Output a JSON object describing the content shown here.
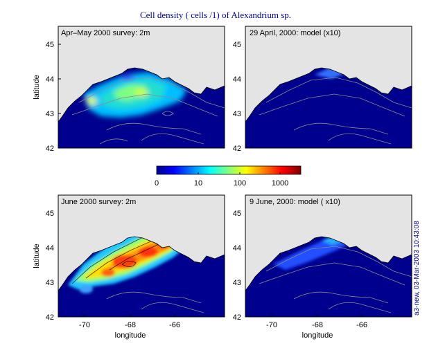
{
  "figure": {
    "title": "Cell density ( cells /1) of Alexandrium sp.",
    "timestamp": "a3-new, 03-Mar-2003 10:43:08",
    "colors": {
      "ocean_low": "#00008f",
      "land": "#e4e4e4",
      "contour": "#8a8a8a",
      "title": "#00008b"
    }
  },
  "panels": [
    {
      "id": "p1",
      "label": "Apr–May 2000 survey: 2m",
      "ylabel": "latitude",
      "xlabel": ""
    },
    {
      "id": "p2",
      "label": "29 April, 2000: model (x10)",
      "ylabel": "",
      "xlabel": ""
    },
    {
      "id": "p3",
      "label": "June 2000 survey: 2m",
      "ylabel": "latitude",
      "xlabel": "longitude"
    },
    {
      "id": "p4",
      "label": "9 June, 2000: model ( x10)",
      "ylabel": "",
      "xlabel": "longitude"
    }
  ],
  "axes": {
    "yticks": [
      "45",
      "44",
      "43",
      "42"
    ],
    "xticks": [
      "-70",
      "-68",
      "-66"
    ]
  },
  "colorbar": {
    "ticks": [
      "0",
      "10",
      "100",
      "1000"
    ],
    "scale": "log",
    "colormap": "jet"
  }
}
